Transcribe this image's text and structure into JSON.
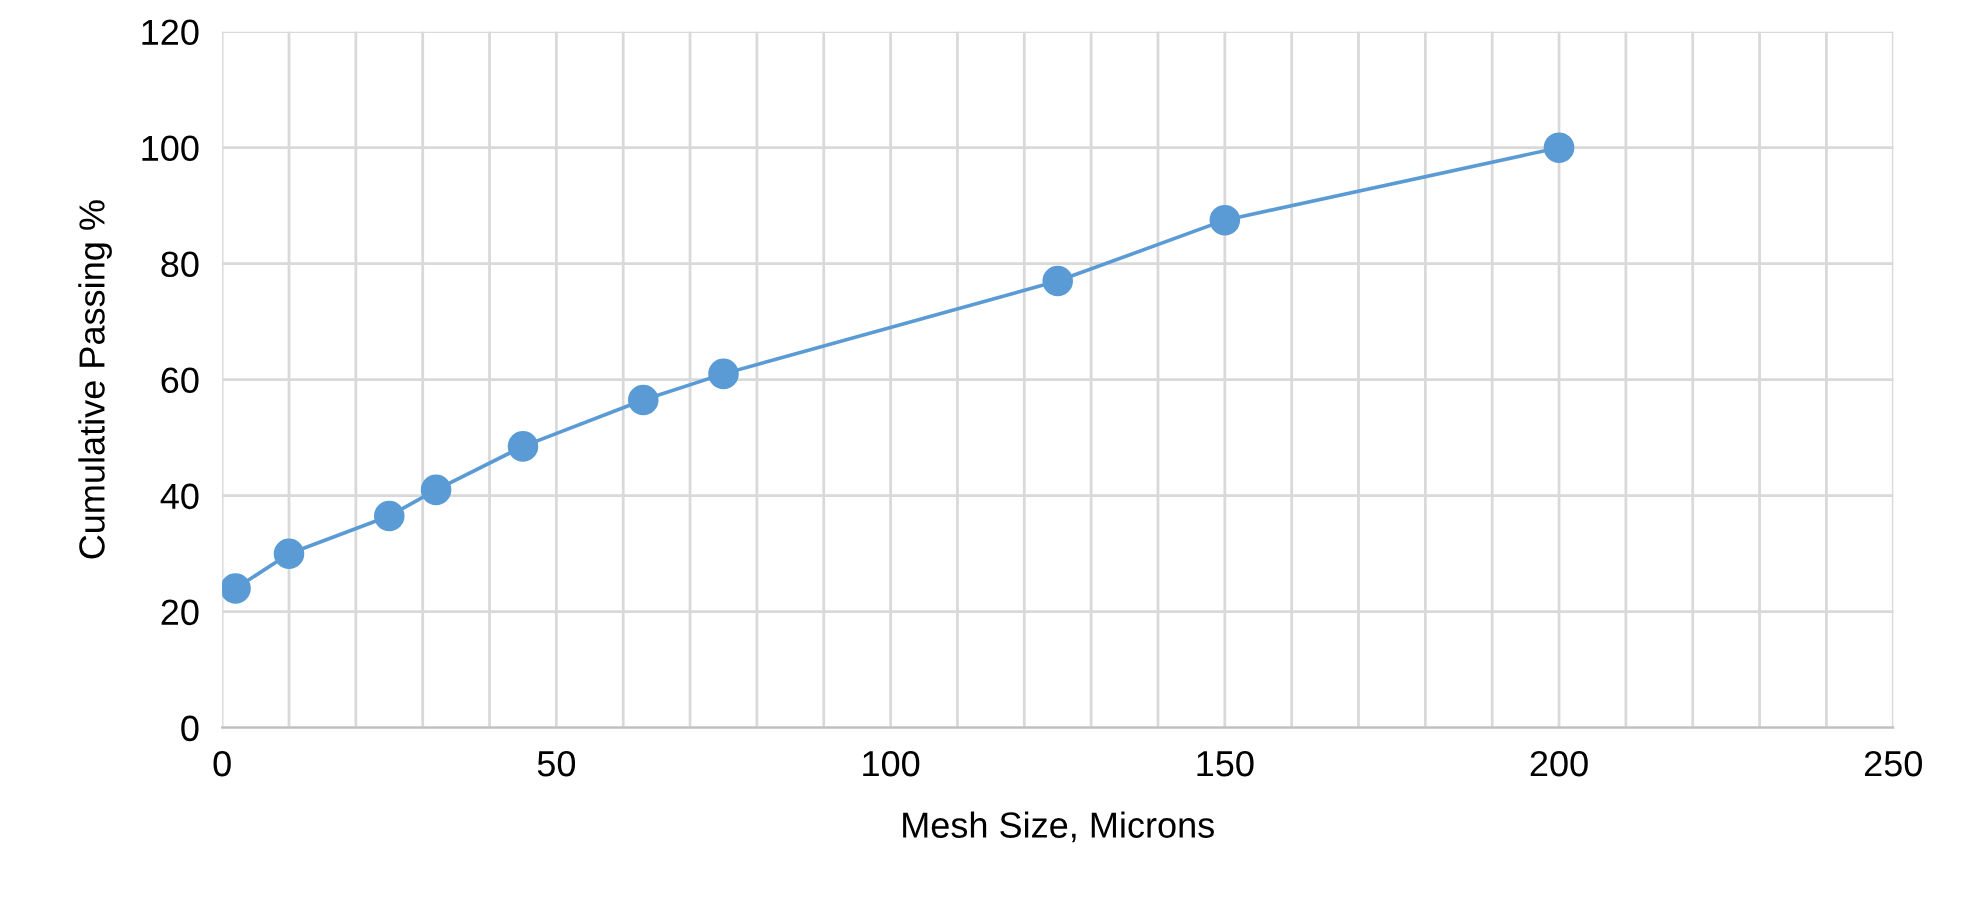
{
  "chart_data": {
    "type": "line",
    "xlabel": "Mesh Size, Microns",
    "ylabel": "Cumulative Passing %",
    "x": [
      2,
      10,
      25,
      32,
      45,
      63,
      75,
      125,
      150,
      200
    ],
    "series": [
      {
        "color": "#5b9bd5",
        "values": [
          24,
          30,
          36.5,
          41,
          48.5,
          56.5,
          61,
          77,
          87.5,
          100
        ]
      }
    ],
    "xlim": [
      0,
      250
    ],
    "ylim": [
      0,
      120
    ],
    "xticks": [
      0,
      {
        "value": 10,
        "label": null
      },
      {
        "value": 20,
        "label": null
      },
      {
        "value": 30,
        "label": null
      },
      {
        "value": 40,
        "label": null
      },
      50,
      {
        "value": 60,
        "label": null
      },
      {
        "value": 70,
        "label": null
      },
      {
        "value": 80,
        "label": null
      },
      {
        "value": 90,
        "label": null
      },
      100,
      {
        "value": 110,
        "label": null
      },
      {
        "value": 120,
        "label": null
      },
      {
        "value": 130,
        "label": null
      },
      {
        "value": 140,
        "label": null
      },
      150,
      {
        "value": 160,
        "label": null
      },
      {
        "value": 170,
        "label": null
      },
      {
        "value": 180,
        "label": null
      },
      {
        "value": 190,
        "label": null
      },
      200,
      {
        "value": 210,
        "label": null
      },
      {
        "value": 220,
        "label": null
      },
      {
        "value": 230,
        "label": null
      },
      {
        "value": 240,
        "label": null
      },
      250
    ],
    "yticks": [
      0,
      20,
      40,
      60,
      80,
      100,
      120
    ],
    "grid": true,
    "marker": "circle",
    "line_style": "solid"
  }
}
